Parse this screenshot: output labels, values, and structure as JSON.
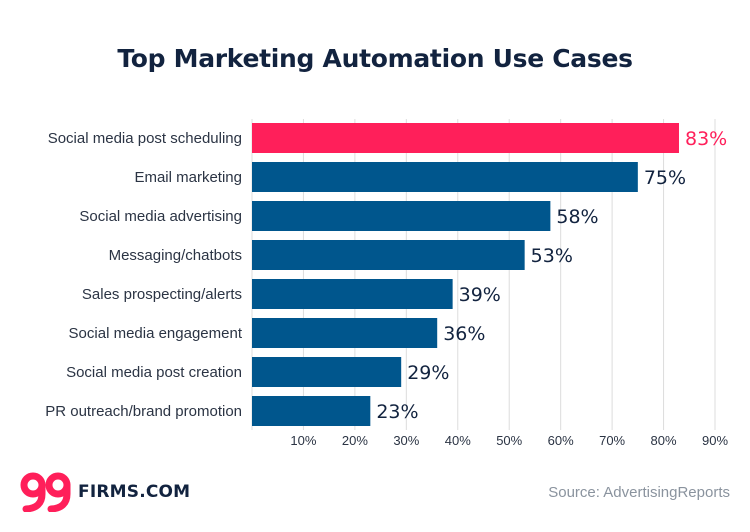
{
  "chart_data": {
    "type": "bar",
    "orientation": "horizontal",
    "title": "Top Marketing Automation Use Cases",
    "categories": [
      "Social media post scheduling",
      "Email marketing",
      "Social media advertising",
      "Messaging/chatbots",
      "Sales prospecting/alerts",
      "Social media engagement",
      "Social media post creation",
      "PR outreach/brand promotion"
    ],
    "values": [
      83,
      75,
      58,
      53,
      39,
      36,
      29,
      23
    ],
    "value_labels": [
      "83%",
      "75%",
      "58%",
      "53%",
      "39%",
      "36%",
      "29%",
      "23%"
    ],
    "xlim": [
      0,
      90
    ],
    "x_ticks": [
      10,
      20,
      30,
      40,
      50,
      60,
      70,
      80,
      90
    ],
    "x_tick_labels": [
      "10%",
      "20%",
      "30%",
      "40%",
      "50%",
      "60%",
      "70%",
      "80%",
      "90%"
    ],
    "grid": "vertical",
    "colors": {
      "bar": "#00568d",
      "highlight": "#ff1f5a",
      "label": "#12233f",
      "grid": "#dcdcdc"
    },
    "highlight_index": 0
  },
  "brand": {
    "logo_mark": "99",
    "logo_text": "FIRMS.COM"
  },
  "source": "Source: AdvertisingReports"
}
